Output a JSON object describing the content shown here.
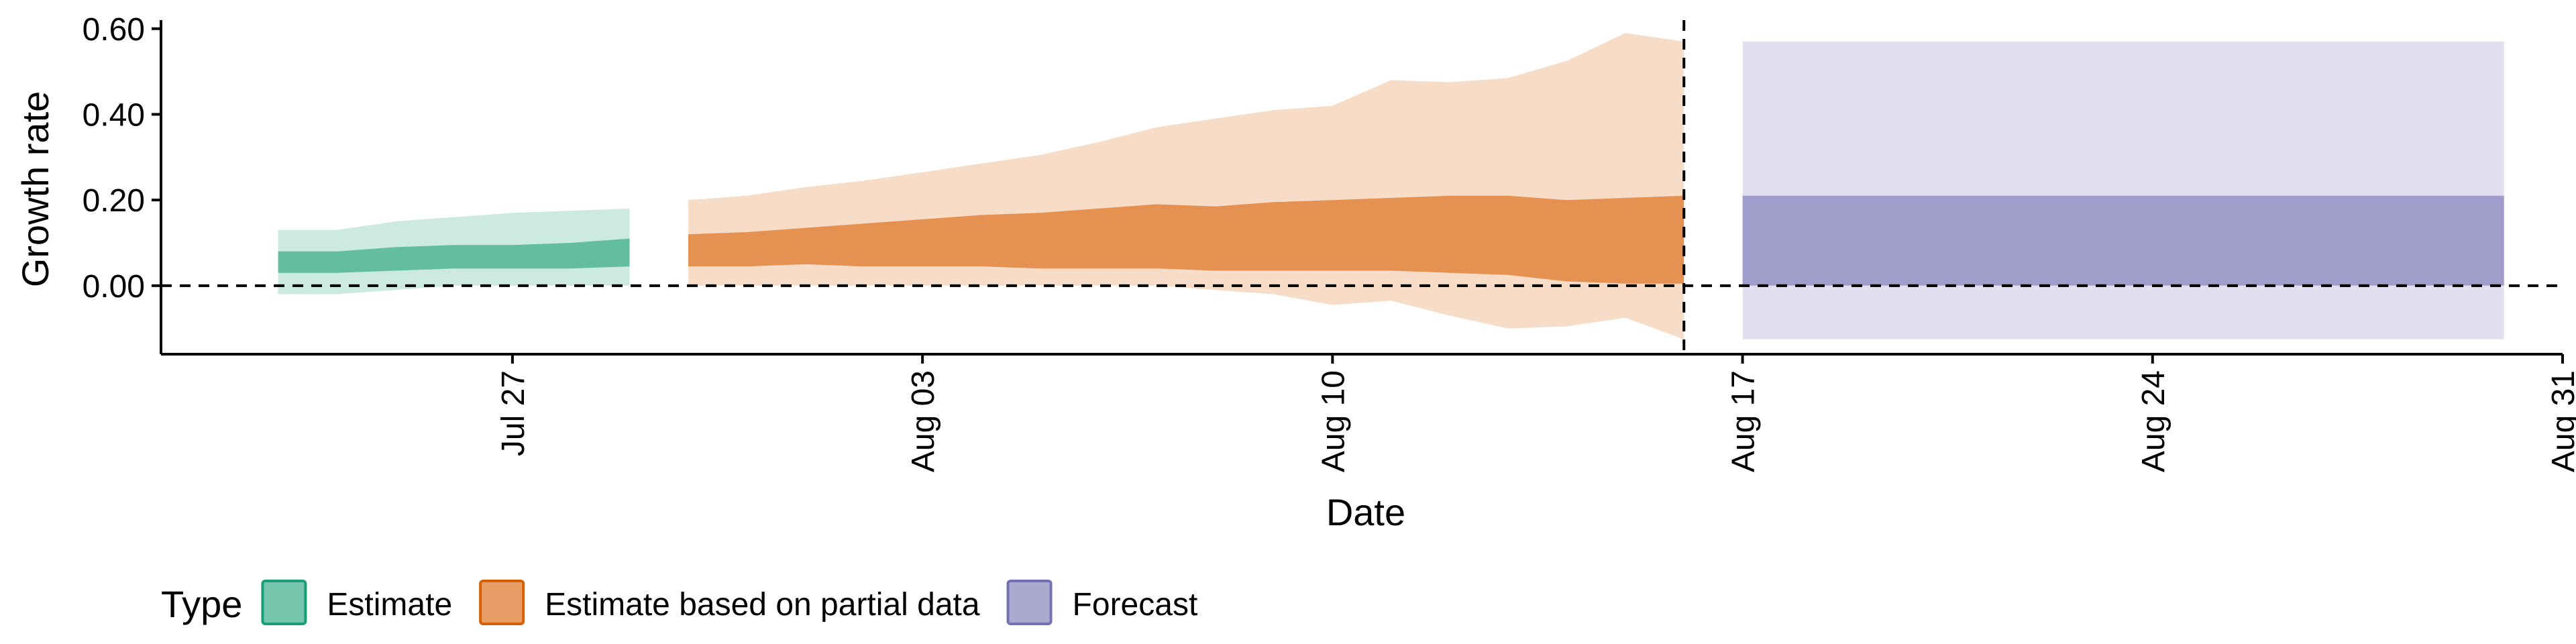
{
  "chart_data": {
    "type": "area",
    "title": "",
    "xlabel": "Date",
    "ylabel": "Growth rate",
    "x_ticks": [
      "Jul 27",
      "Aug 03",
      "Aug 10",
      "Aug 17",
      "Aug 24",
      "Aug 31"
    ],
    "y_ticks": [
      "0.00",
      "0.20",
      "0.40",
      "0.60"
    ],
    "xlim": [
      "2020-07-21",
      "2020-08-31"
    ],
    "ylim": [
      -0.16,
      0.62
    ],
    "forecast_date": "2020-08-16",
    "reference_line_y": 0,
    "grid": false,
    "legend": {
      "title": "Type",
      "position": "bottom-left",
      "entries": [
        {
          "label": "Estimate",
          "color": "#1b9e77"
        },
        {
          "label": "Estimate based on partial data",
          "color": "#d95f02"
        },
        {
          "label": "Forecast",
          "color": "#7570b3"
        }
      ]
    },
    "series": [
      {
        "name": "Estimate",
        "color": "#1b9e77",
        "x": [
          "2020-07-23",
          "2020-07-24",
          "2020-07-25",
          "2020-07-26",
          "2020-07-27",
          "2020-07-28",
          "2020-07-29"
        ],
        "lower_90": [
          -0.02,
          -0.02,
          -0.01,
          0.0,
          0.0,
          0.0,
          0.0
        ],
        "lower_50": [
          0.03,
          0.03,
          0.035,
          0.04,
          0.04,
          0.04,
          0.045
        ],
        "upper_50": [
          0.08,
          0.08,
          0.09,
          0.095,
          0.095,
          0.1,
          0.11
        ],
        "upper_90": [
          0.13,
          0.13,
          0.15,
          0.16,
          0.17,
          0.175,
          0.18
        ]
      },
      {
        "name": "Estimate based on partial data",
        "color": "#d95f02",
        "x": [
          "2020-07-30",
          "2020-07-31",
          "2020-08-01",
          "2020-08-02",
          "2020-08-03",
          "2020-08-04",
          "2020-08-05",
          "2020-08-06",
          "2020-08-07",
          "2020-08-08",
          "2020-08-09",
          "2020-08-10",
          "2020-08-11",
          "2020-08-12",
          "2020-08-13",
          "2020-08-14",
          "2020-08-15",
          "2020-08-16"
        ],
        "lower_90": [
          0.0,
          0.0,
          0.0,
          0.0,
          0.0,
          0.0,
          0.0,
          0.0,
          0.0,
          -0.01,
          -0.02,
          -0.045,
          -0.035,
          -0.07,
          -0.1,
          -0.095,
          -0.075,
          -0.125
        ],
        "lower_50": [
          0.045,
          0.045,
          0.05,
          0.045,
          0.045,
          0.045,
          0.04,
          0.04,
          0.04,
          0.035,
          0.035,
          0.035,
          0.035,
          0.03,
          0.025,
          0.01,
          0.005,
          0.005
        ],
        "upper_50": [
          0.12,
          0.125,
          0.135,
          0.145,
          0.155,
          0.165,
          0.17,
          0.18,
          0.19,
          0.185,
          0.195,
          0.2,
          0.205,
          0.21,
          0.21,
          0.2,
          0.205,
          0.21
        ],
        "upper_90": [
          0.2,
          0.21,
          0.23,
          0.245,
          0.265,
          0.285,
          0.305,
          0.335,
          0.37,
          0.39,
          0.41,
          0.42,
          0.48,
          0.475,
          0.485,
          0.525,
          0.59,
          0.57
        ]
      },
      {
        "name": "Forecast",
        "color": "#7570b3",
        "x": [
          "2020-08-17",
          "2020-08-30"
        ],
        "lower_90": [
          -0.125,
          -0.125
        ],
        "lower_50": [
          0.0,
          0.0
        ],
        "upper_50": [
          0.21,
          0.21
        ],
        "upper_90": [
          0.57,
          0.57
        ]
      }
    ]
  }
}
